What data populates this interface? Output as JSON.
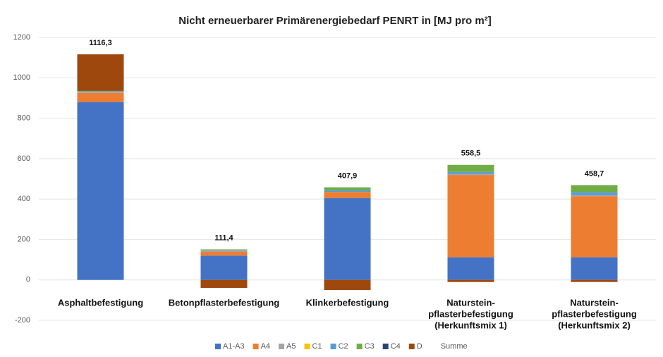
{
  "chart_data": {
    "type": "stacked_bar",
    "title": "Nicht erneuerbarer Primärenergiebedarf PENRT in [MJ pro m²]",
    "categories": [
      "Asphaltbefestigung",
      "Betonpflasterbefestigung",
      "Klinkerbefestigung",
      "Naturstein-\npflasterbefestigung\n(Herkunftsmix 1)",
      "Naturstein-\npflasterbefestigung\n(Herkunftsmix 2)"
    ],
    "series": [
      {
        "name": "A1-A3",
        "color": "#4472c4",
        "values": [
          880,
          120,
          405,
          112,
          112
        ]
      },
      {
        "name": "A4",
        "color": "#ed7d31",
        "values": [
          45,
          20,
          30,
          407,
          302
        ]
      },
      {
        "name": "A5",
        "color": "#a5a5a5",
        "values": [
          5,
          5,
          0,
          5,
          5
        ]
      },
      {
        "name": "C1",
        "color": "#ffc000",
        "values": [
          0,
          0,
          0,
          0,
          0
        ]
      },
      {
        "name": "C2",
        "color": "#5b9bd5",
        "values": [
          3,
          3,
          8,
          10,
          15
        ]
      },
      {
        "name": "C3",
        "color": "#70ad47",
        "values": [
          2,
          3,
          15,
          35,
          35
        ]
      },
      {
        "name": "C4",
        "color": "#264478",
        "values": [
          0,
          0,
          0,
          0,
          0
        ]
      },
      {
        "name": "D",
        "color": "#9e480e",
        "values": [
          181.3,
          -39.6,
          -50.1,
          -10.5,
          -10.3
        ]
      }
    ],
    "totals": {
      "name": "Summe",
      "values": [
        1116.3,
        111.4,
        407.9,
        558.5,
        458.7
      ],
      "value_labels": [
        "1116,3",
        "111,4",
        "407,9",
        "558,5",
        "458,7"
      ]
    },
    "ylim": [
      -200,
      1200
    ],
    "yticks": [
      -200,
      0,
      200,
      400,
      600,
      800,
      1000,
      1200
    ],
    "grid": true
  }
}
